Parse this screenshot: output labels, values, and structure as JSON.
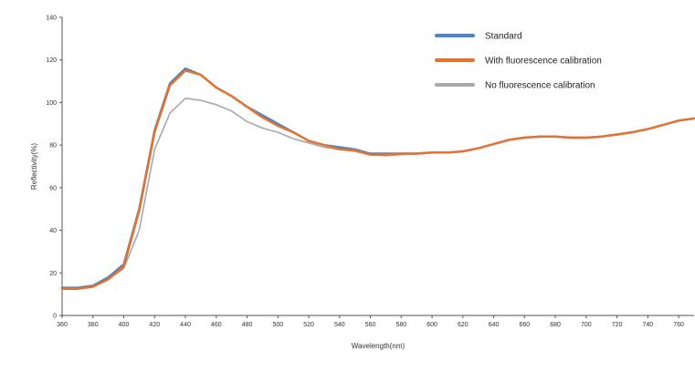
{
  "chart_data": {
    "type": "line",
    "title": "",
    "xlabel": "Wavelength(nm)",
    "ylabel": "Reflectivity(%)",
    "xlim": [
      360,
      770
    ],
    "ylim": [
      0,
      140
    ],
    "x_ticks": [
      360,
      380,
      400,
      420,
      440,
      460,
      480,
      500,
      520,
      540,
      560,
      580,
      600,
      620,
      640,
      660,
      680,
      700,
      720,
      740,
      760
    ],
    "y_ticks": [
      0,
      20,
      40,
      60,
      80,
      100,
      120,
      140
    ],
    "grid": false,
    "legend_position": "top-right",
    "x": [
      360,
      370,
      380,
      390,
      400,
      410,
      420,
      430,
      440,
      450,
      460,
      470,
      480,
      490,
      500,
      510,
      520,
      530,
      540,
      550,
      560,
      570,
      580,
      590,
      600,
      610,
      620,
      630,
      640,
      650,
      660,
      670,
      680,
      690,
      700,
      710,
      720,
      730,
      740,
      750,
      760,
      770
    ],
    "series": [
      {
        "name": "Standard",
        "color": "#4a86c4",
        "values": [
          13,
          13,
          14,
          18,
          24,
          50,
          87,
          109,
          116,
          113,
          107,
          103,
          98,
          94,
          90,
          86,
          82,
          80,
          79,
          78,
          76,
          76,
          76,
          76,
          76.5,
          76.5,
          77,
          78.5,
          80.5,
          82.5,
          83.5,
          84,
          84,
          83.5,
          83.5,
          84,
          85,
          86,
          87.5,
          89.5,
          91.5,
          92.5
        ]
      },
      {
        "name": "With fluorescence calibration",
        "color": "#e8722c",
        "values": [
          12.5,
          12.5,
          13.5,
          17,
          23,
          49,
          86,
          108,
          115,
          113,
          107,
          103,
          98,
          93,
          89,
          86,
          82,
          80,
          78,
          77.5,
          75.5,
          75.5,
          76,
          76,
          76.5,
          76.5,
          77,
          78.5,
          80.5,
          82.5,
          83.5,
          84,
          84,
          83.5,
          83.5,
          84,
          85,
          86,
          87.5,
          89.5,
          91.5,
          92.5
        ]
      },
      {
        "name": "No fluorescence calibration",
        "color": "#a8a8a8",
        "values": [
          13,
          13,
          14,
          17,
          22,
          40,
          78,
          95,
          102,
          101,
          99,
          96,
          91,
          88,
          86,
          83,
          81,
          79,
          78,
          77,
          75.5,
          75,
          75.5,
          76,
          76.5,
          76.5,
          77,
          78.5,
          80.5,
          82.5,
          83.5,
          84,
          84,
          83.5,
          83.5,
          84,
          85,
          86,
          87.5,
          89.5,
          91.5,
          92.5
        ]
      }
    ]
  }
}
